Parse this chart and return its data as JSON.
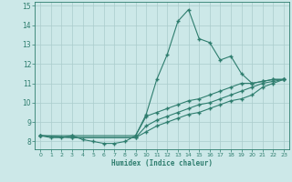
{
  "title": "",
  "xlabel": "Humidex (Indice chaleur)",
  "ylabel": "",
  "background_color": "#cce8e8",
  "line_color": "#2e7d6e",
  "grid_color": "#aacccc",
  "xlim": [
    -0.5,
    23.5
  ],
  "ylim": [
    7.6,
    15.2
  ],
  "yticks": [
    8,
    9,
    10,
    11,
    12,
    13,
    14,
    15
  ],
  "xticks": [
    0,
    1,
    2,
    3,
    4,
    5,
    6,
    7,
    8,
    9,
    10,
    11,
    12,
    13,
    14,
    15,
    16,
    17,
    18,
    19,
    20,
    21,
    22,
    23
  ],
  "series": [
    {
      "x": [
        0,
        1,
        2,
        3,
        4,
        5,
        6,
        7,
        8,
        9,
        10,
        11,
        12,
        13,
        14,
        15,
        16,
        17,
        18,
        19,
        20,
        21,
        22,
        23
      ],
      "y": [
        8.3,
        8.2,
        8.2,
        8.3,
        8.1,
        8.0,
        7.9,
        7.9,
        8.0,
        8.3,
        9.4,
        11.2,
        12.5,
        14.2,
        14.8,
        13.3,
        13.1,
        12.2,
        12.4,
        11.5,
        11.0,
        11.1,
        11.2,
        11.2
      ]
    },
    {
      "x": [
        0,
        3,
        9,
        10,
        11,
        12,
        13,
        14,
        15,
        16,
        17,
        18,
        19,
        20,
        21,
        22,
        23
      ],
      "y": [
        8.3,
        8.2,
        8.2,
        8.5,
        8.8,
        9.0,
        9.2,
        9.4,
        9.5,
        9.7,
        9.9,
        10.1,
        10.2,
        10.4,
        10.8,
        11.0,
        11.2
      ]
    },
    {
      "x": [
        0,
        3,
        9,
        10,
        11,
        12,
        13,
        14,
        15,
        16,
        17,
        18,
        19,
        20,
        21,
        22,
        23
      ],
      "y": [
        8.3,
        8.2,
        8.2,
        8.8,
        9.1,
        9.3,
        9.5,
        9.7,
        9.9,
        10.0,
        10.2,
        10.4,
        10.6,
        10.8,
        11.0,
        11.1,
        11.2
      ]
    },
    {
      "x": [
        0,
        3,
        9,
        10,
        11,
        12,
        13,
        14,
        15,
        16,
        17,
        18,
        19,
        20,
        21,
        22,
        23
      ],
      "y": [
        8.3,
        8.3,
        8.3,
        9.3,
        9.5,
        9.7,
        9.9,
        10.1,
        10.2,
        10.4,
        10.6,
        10.8,
        11.0,
        11.0,
        11.1,
        11.2,
        11.2
      ]
    }
  ]
}
